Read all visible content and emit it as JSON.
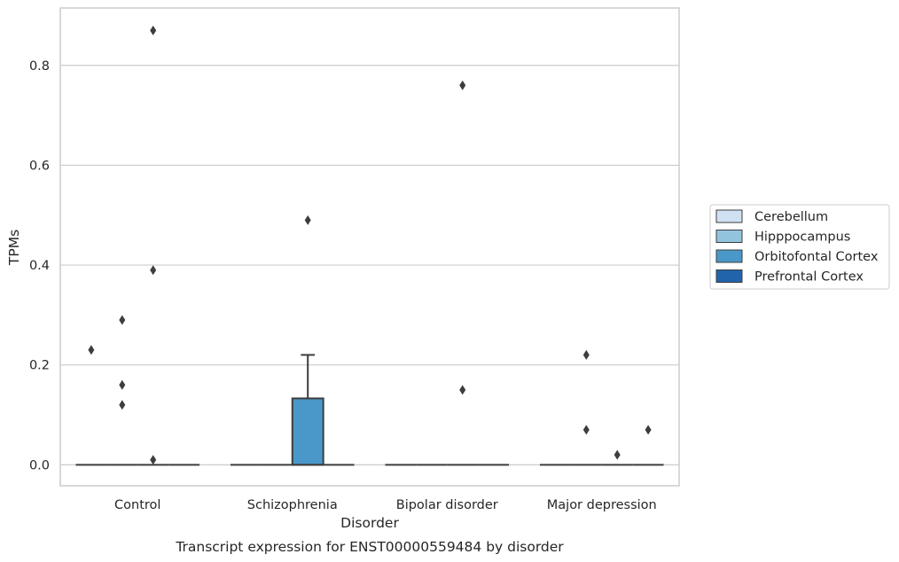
{
  "caption": "Transcript expression for ENST00000559484 by disorder",
  "chart_data": {
    "type": "box",
    "xlabel": "Disorder",
    "ylabel": "TPMs",
    "ylim": [
      -0.042,
      0.915
    ],
    "yticks": [
      0.0,
      0.2,
      0.4,
      0.6,
      0.8
    ],
    "ytick_labels": [
      "0.0",
      "0.2",
      "0.4",
      "0.6",
      "0.8"
    ],
    "categories": [
      "Control",
      "Schizophrenia",
      "Bipolar disorder",
      "Major depression"
    ],
    "grid": "horizontal",
    "legend_position": "right",
    "hue": [
      "Cerebellum",
      "Hipppocampus",
      "Orbitofontal Cortex",
      "Prefrontal Cortex"
    ],
    "colors": [
      "#cfe1f2",
      "#93c4de",
      "#4a98c9",
      "#2164ab"
    ],
    "boxes": [
      {
        "category": "Control",
        "q1": 0.0,
        "median": 0.0,
        "q3": 0.0,
        "whisker_low": 0.0,
        "whisker_high": 0.0,
        "outliers": [
          {
            "group": "Cerebellum",
            "y": 0.23
          },
          {
            "group": "Hipppocampus",
            "y": 0.29
          },
          {
            "group": "Hipppocampus",
            "y": 0.16
          },
          {
            "group": "Hipppocampus",
            "y": 0.12
          },
          {
            "group": "Orbitofontal Cortex",
            "y": 0.87
          },
          {
            "group": "Orbitofontal Cortex",
            "y": 0.39
          },
          {
            "group": "Orbitofontal Cortex",
            "y": 0.01
          }
        ]
      },
      {
        "category": "Schizophrenia",
        "q1": 0.0,
        "median": 0.0,
        "q3": 0.133,
        "whisker_low": 0.0,
        "whisker_high": 0.22,
        "box_group": "Orbitofontal Cortex",
        "outliers": [
          {
            "group": "Orbitofontal Cortex",
            "y": 0.49
          }
        ]
      },
      {
        "category": "Bipolar disorder",
        "q1": 0.0,
        "median": 0.0,
        "q3": 0.0,
        "whisker_low": 0.0,
        "whisker_high": 0.0,
        "outliers": [
          {
            "group": "Orbitofontal Cortex",
            "y": 0.76
          },
          {
            "group": "Orbitofontal Cortex",
            "y": 0.15
          }
        ]
      },
      {
        "category": "Major depression",
        "q1": 0.0,
        "median": 0.0,
        "q3": 0.0,
        "whisker_low": 0.0,
        "whisker_high": 0.0,
        "outliers": [
          {
            "group": "Hipppocampus",
            "y": 0.22
          },
          {
            "group": "Hipppocampus",
            "y": 0.07
          },
          {
            "group": "Orbitofontal Cortex",
            "y": 0.02
          },
          {
            "group": "Prefrontal Cortex",
            "y": 0.07
          }
        ]
      }
    ]
  }
}
